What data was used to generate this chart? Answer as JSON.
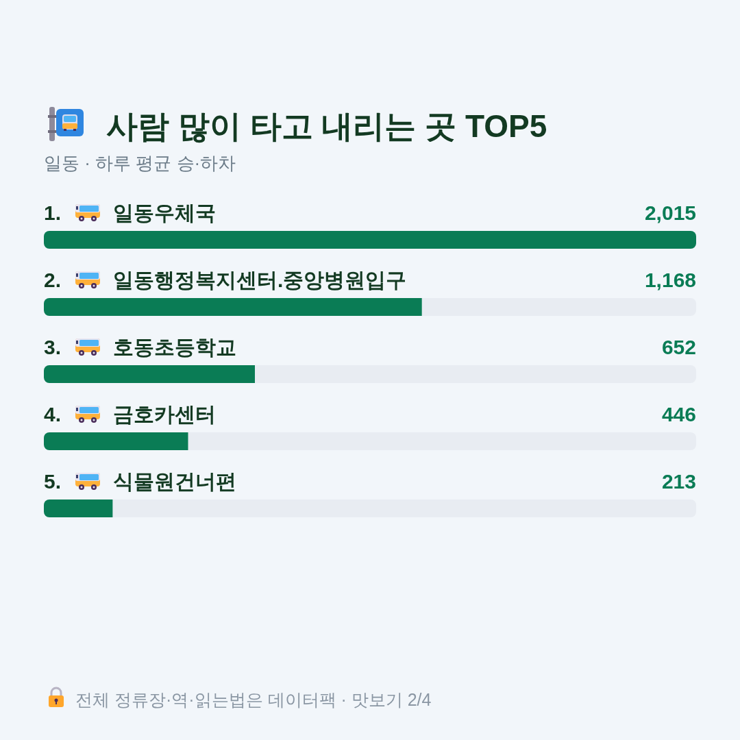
{
  "chart_data": {
    "type": "bar",
    "orientation": "horizontal",
    "title": "사람 많이 타고 내리는 곳 TOP5",
    "subtitle": "일동 · 하루 평균 승·하차",
    "categories": [
      "1. 일동우체국",
      "2. 일동행정복지센터.중앙병원입구",
      "3. 호동초등학교",
      "4. 금호카센터",
      "5. 식물원건너편"
    ],
    "values": [
      2015,
      1168,
      652,
      446,
      213
    ],
    "value_labels": [
      "2,015",
      "1,168",
      "652",
      "446",
      "213"
    ],
    "color": "#0a7c55",
    "annotations": [
      "전체 정류장·역·읽는법은 데이터팩 · 맛보기 2/4"
    ]
  }
}
